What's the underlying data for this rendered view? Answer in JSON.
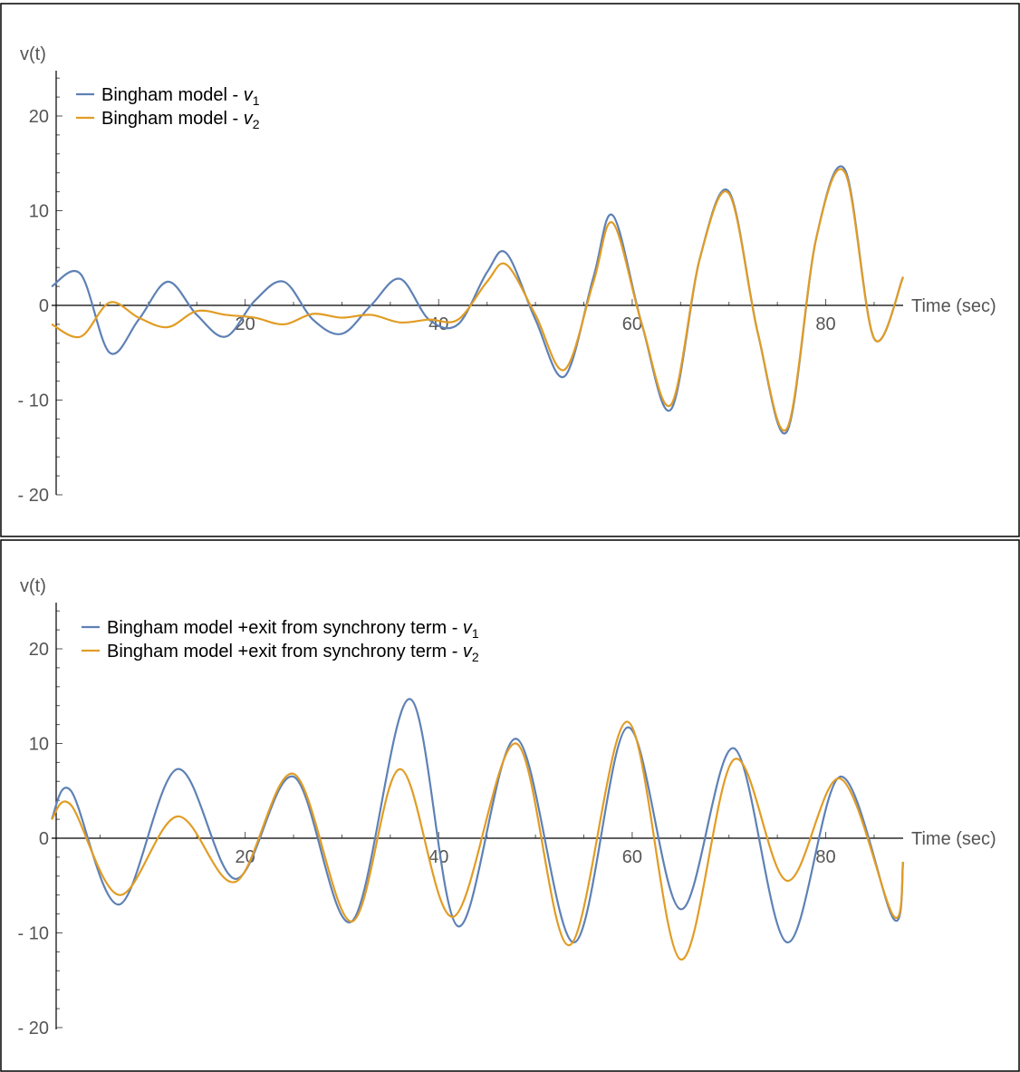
{
  "chart_data": [
    {
      "type": "line",
      "xlabel": "Time (sec)",
      "ylabel": "v(t)",
      "xlim": [
        0,
        88
      ],
      "ylim": [
        -20,
        25
      ],
      "x_ticks": [
        20,
        40,
        60,
        80
      ],
      "y_ticks": [
        -20,
        -10,
        0,
        10,
        20
      ],
      "y_tick_labels": [
        "- 20",
        "- 10",
        "0",
        "10",
        "20"
      ],
      "legend_position": "top-left",
      "colors": [
        "#5e81b5",
        "#e19c24"
      ],
      "legend": [
        {
          "text": "Bingham model -",
          "var": "v",
          "sub": "1"
        },
        {
          "text": "Bingham model -",
          "var": "v",
          "sub": "2"
        }
      ],
      "series": [
        {
          "name": "Bingham model - v1",
          "x": [
            0,
            3,
            6,
            9,
            12,
            15,
            18,
            21,
            24,
            27,
            30,
            33,
            36,
            39,
            42,
            45,
            47,
            50,
            53,
            56,
            58,
            61,
            64,
            67,
            70,
            73,
            76,
            79,
            82,
            85,
            88
          ],
          "y": [
            2,
            3.3,
            -5,
            -1.5,
            2.5,
            -1,
            -3.3,
            0.5,
            2.5,
            -1.5,
            -3,
            0,
            2.8,
            -1.5,
            -2,
            3.5,
            5.5,
            -1.5,
            -7.5,
            3,
            9.5,
            -2,
            -11,
            5,
            12,
            -3,
            -13.3,
            7,
            14.3,
            -3.5,
            3
          ]
        },
        {
          "name": "Bingham model - v2",
          "x": [
            0,
            3,
            6,
            9,
            12,
            15,
            18,
            21,
            24,
            27,
            30,
            33,
            36,
            39,
            42,
            45,
            47,
            50,
            53,
            56,
            58,
            61,
            64,
            67,
            70,
            73,
            76,
            79,
            82,
            85,
            88
          ],
          "y": [
            -2,
            -3.3,
            0.3,
            -1.3,
            -2.3,
            -0.6,
            -1,
            -1.3,
            -2,
            -0.9,
            -1.3,
            -1,
            -1.8,
            -1.5,
            -1.5,
            2.5,
            4.3,
            -1,
            -6.8,
            2.5,
            8.7,
            -2,
            -10.5,
            5,
            11.8,
            -3,
            -13,
            7,
            14,
            -3.5,
            3
          ]
        }
      ]
    },
    {
      "type": "line",
      "xlabel": "Time (sec)",
      "ylabel": "v(t)",
      "xlim": [
        0,
        88
      ],
      "ylim": [
        -20,
        25
      ],
      "x_ticks": [
        20,
        40,
        60,
        80
      ],
      "y_ticks": [
        -20,
        -10,
        0,
        10,
        20
      ],
      "y_tick_labels": [
        "- 20",
        "- 10",
        "0",
        "10",
        "20"
      ],
      "legend_position": "top-left",
      "colors": [
        "#5e81b5",
        "#e19c24"
      ],
      "legend": [
        {
          "text": "Bingham model +exit from synchrony term -",
          "var": "v",
          "sub": "1"
        },
        {
          "text": "Bingham model +exit from synchrony term -",
          "var": "v",
          "sub": "2"
        }
      ],
      "series": [
        {
          "name": "Bingham model +exit from synchrony term - v1",
          "x": [
            0,
            2,
            7,
            13,
            19,
            25,
            31,
            37,
            42,
            48,
            54,
            59.5,
            65,
            70.5,
            76,
            81.5,
            87,
            88
          ],
          "y": [
            2,
            5,
            -7,
            7.3,
            -4.3,
            6.5,
            -8.8,
            14.7,
            -9.3,
            10.5,
            -11,
            11.7,
            -7.5,
            9.5,
            -11,
            6.5,
            -8.5,
            -2.5
          ]
        },
        {
          "name": "Bingham model +exit from synchrony term - v2",
          "x": [
            0,
            2,
            7,
            13,
            19,
            25,
            31,
            36,
            41.5,
            48,
            53.5,
            59.5,
            65,
            70.5,
            76,
            81.5,
            87,
            88
          ],
          "y": [
            2,
            3.5,
            -6,
            2.3,
            -4.6,
            6.8,
            -8.8,
            7.3,
            -8.3,
            10,
            -11.3,
            12.3,
            -12.8,
            8.3,
            -4.5,
            6.3,
            -8.2,
            -2.5
          ]
        }
      ]
    }
  ]
}
